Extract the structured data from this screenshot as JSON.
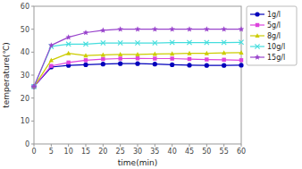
{
  "chart_data": {
    "type": "line",
    "xlabel": "time(min)",
    "ylabel": "temperature(℃)",
    "x": [
      0,
      5,
      10,
      15,
      20,
      25,
      30,
      35,
      40,
      45,
      50,
      55,
      60
    ],
    "series": [
      {
        "name": "1g/l",
        "color": "#0000bb",
        "marker": "circle",
        "values": [
          25,
          33.5,
          34.2,
          34.5,
          34.8,
          35.0,
          35.0,
          34.8,
          34.5,
          34.3,
          34.2,
          34.2,
          34.3
        ]
      },
      {
        "name": "5g/l",
        "color": "#dd44dd",
        "marker": "square",
        "values": [
          25,
          34.0,
          35.5,
          36.5,
          37.0,
          37.2,
          37.3,
          37.2,
          37.2,
          37.0,
          36.8,
          36.7,
          36.5
        ]
      },
      {
        "name": "8g/l",
        "color": "#cccc00",
        "marker": "triangle",
        "values": [
          25,
          36.5,
          39.5,
          38.5,
          38.8,
          39.0,
          39.0,
          39.2,
          39.3,
          39.5,
          39.5,
          39.7,
          39.8
        ]
      },
      {
        "name": "10g/l",
        "color": "#44dddd",
        "marker": "x",
        "values": [
          25,
          42.5,
          43.5,
          43.5,
          44.0,
          44.0,
          44.0,
          44.0,
          44.2,
          44.2,
          44.2,
          44.2,
          44.3
        ]
      },
      {
        "name": "15g/l",
        "color": "#9944cc",
        "marker": "star",
        "values": [
          25,
          43.0,
          46.5,
          48.5,
          49.5,
          50.0,
          50.0,
          50.0,
          50.0,
          50.0,
          50.0,
          50.0,
          50.0
        ]
      }
    ],
    "xlim": [
      0,
      60
    ],
    "ylim": [
      0,
      60
    ],
    "xticks": [
      0,
      5,
      10,
      15,
      20,
      25,
      30,
      35,
      40,
      45,
      50,
      55,
      60
    ],
    "yticks": [
      0,
      10,
      20,
      30,
      40,
      50,
      60
    ],
    "grid": false,
    "legend": "right"
  }
}
